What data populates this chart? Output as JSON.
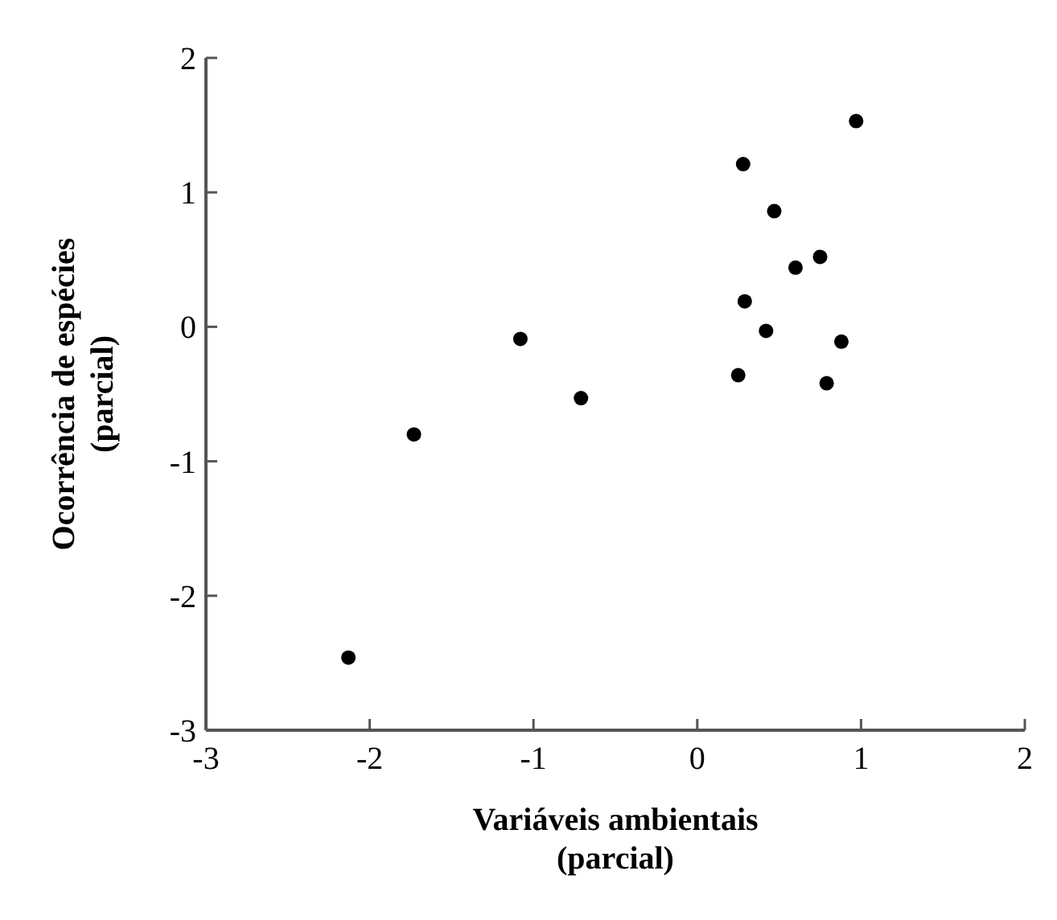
{
  "chart_data": {
    "type": "scatter",
    "xlabel": "Variáveis ambientais\n(parcial)",
    "ylabel": "Ocorrência de espécies\n(parcial)",
    "x": [
      -2.13,
      -1.73,
      -1.08,
      -0.71,
      0.25,
      0.28,
      0.29,
      0.42,
      0.47,
      0.6,
      0.75,
      0.79,
      0.88,
      0.97
    ],
    "values": [
      -2.46,
      -0.8,
      -0.09,
      -0.53,
      -0.36,
      1.21,
      0.19,
      -0.03,
      0.86,
      0.44,
      0.52,
      -0.42,
      -0.11,
      1.53
    ],
    "color": "#000000",
    "marker": "circle",
    "xlim": [
      -3,
      2
    ],
    "xticks": [
      -3,
      -2,
      -1,
      0,
      1,
      2
    ],
    "ylim": [
      -3,
      2
    ],
    "yticks": [
      -3,
      -2,
      -1,
      0,
      1,
      2
    ],
    "grid": false
  }
}
